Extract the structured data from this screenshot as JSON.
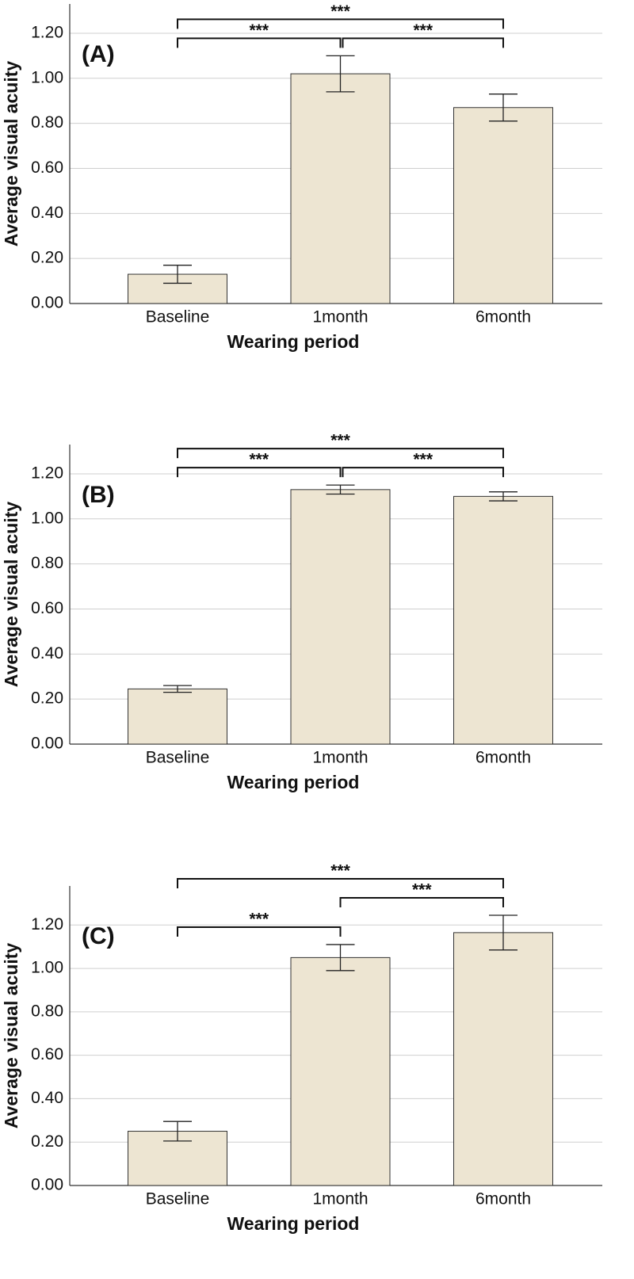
{
  "chart_data": [
    {
      "type": "bar",
      "title": "(A)",
      "x_label": "Wearing period",
      "y_label": "Average visual acuity",
      "categories": [
        "Baseline",
        "1month",
        "6month"
      ],
      "values": [
        0.13,
        1.02,
        0.87
      ],
      "errors": [
        0.04,
        0.08,
        0.06
      ],
      "color": "#ede5d2",
      "ylim": [
        0,
        1.33
      ],
      "yticks": [
        {
          "value": 0,
          "label": "0.00"
        },
        {
          "value": 0.2,
          "label": "0.20"
        },
        {
          "value": 0.4,
          "label": "0.40"
        },
        {
          "value": 0.6,
          "label": "0.60"
        },
        {
          "value": 0.8,
          "label": "0.80"
        },
        {
          "value": 1,
          "label": "1.00"
        },
        {
          "value": 1.2,
          "label": "1.20"
        }
      ],
      "grid": true,
      "annotations": [
        {
          "label": "***",
          "between": [
            "Baseline",
            "1month"
          ]
        },
        {
          "label": "***",
          "between": [
            "1month",
            "6month"
          ]
        },
        {
          "label": "***",
          "between": [
            "Baseline",
            "6month"
          ]
        }
      ]
    },
    {
      "type": "bar",
      "title": "(B)",
      "x_label": "Wearing period",
      "y_label": "Average visual acuity",
      "categories": [
        "Baseline",
        "1month",
        "6month"
      ],
      "values": [
        0.245,
        1.13,
        1.1
      ],
      "errors": [
        0.015,
        0.02,
        0.02
      ],
      "color": "#ede5d2",
      "ylim": [
        0,
        1.33
      ],
      "yticks": [
        {
          "value": 0,
          "label": "0.00"
        },
        {
          "value": 0.2,
          "label": "0.20"
        },
        {
          "value": 0.4,
          "label": "0.40"
        },
        {
          "value": 0.6,
          "label": "0.60"
        },
        {
          "value": 0.8,
          "label": "0.80"
        },
        {
          "value": 1,
          "label": "1.00"
        },
        {
          "value": 1.2,
          "label": "1.20"
        }
      ],
      "grid": true,
      "annotations": [
        {
          "label": "***",
          "between": [
            "Baseline",
            "1month"
          ]
        },
        {
          "label": "***",
          "between": [
            "1month",
            "6month"
          ]
        },
        {
          "label": "***",
          "between": [
            "Baseline",
            "6month"
          ]
        }
      ]
    },
    {
      "type": "bar",
      "title": "(C)",
      "x_label": "Wearing period",
      "y_label": "Average visual acuity",
      "categories": [
        "Baseline",
        "1month",
        "6month"
      ],
      "values": [
        0.25,
        1.05,
        1.165
      ],
      "errors": [
        0.045,
        0.06,
        0.08
      ],
      "color": "#ede5d2",
      "ylim": [
        0,
        1.38
      ],
      "yticks": [
        {
          "value": 0,
          "label": "0.00"
        },
        {
          "value": 0.2,
          "label": "0.20"
        },
        {
          "value": 0.4,
          "label": "0.40"
        },
        {
          "value": 0.6,
          "label": "0.60"
        },
        {
          "value": 0.8,
          "label": "0.80"
        },
        {
          "value": 1,
          "label": "1.00"
        },
        {
          "value": 1.2,
          "label": "1.20"
        }
      ],
      "grid": true,
      "annotations": [
        {
          "label": "***",
          "between": [
            "Baseline",
            "1month"
          ]
        },
        {
          "label": "***",
          "between": [
            "1month",
            "6month"
          ]
        },
        {
          "label": "***",
          "between": [
            "Baseline",
            "6month"
          ]
        }
      ]
    }
  ]
}
